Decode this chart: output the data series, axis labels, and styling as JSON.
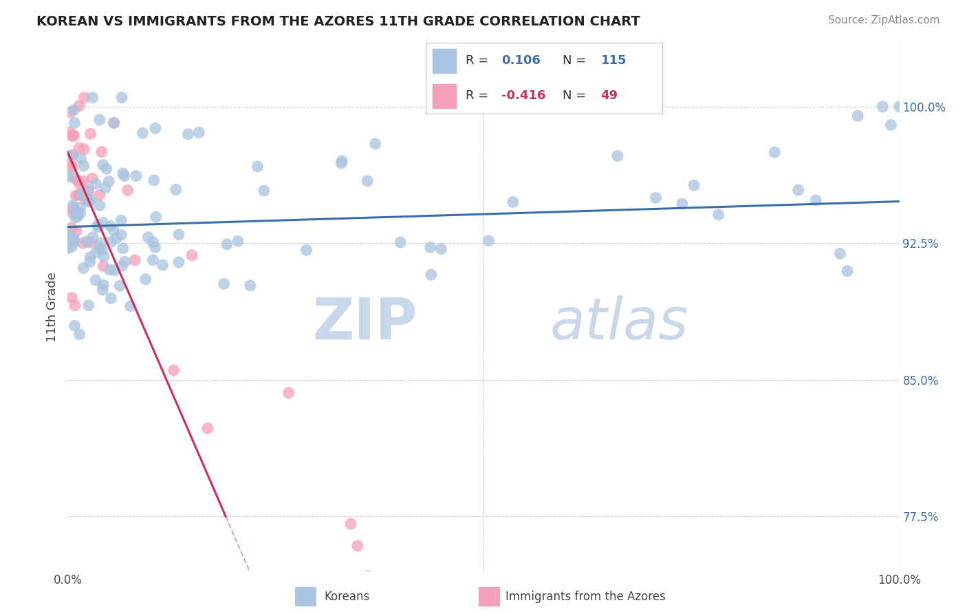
{
  "title": "KOREAN VS IMMIGRANTS FROM THE AZORES 11TH GRADE CORRELATION CHART",
  "source_text": "Source: ZipAtlas.com",
  "ylabel": "11th Grade",
  "xlim": [
    0.0,
    1.0
  ],
  "ylim": [
    0.745,
    1.035
  ],
  "y_tick_vals": [
    0.775,
    0.85,
    0.925,
    1.0
  ],
  "y_tick_labels": [
    "77.5%",
    "85.0%",
    "92.5%",
    "100.0%"
  ],
  "legend_r_korean": "0.106",
  "legend_n_korean": "115",
  "legend_r_azores": "-0.416",
  "legend_n_azores": "49",
  "blue_color": "#A8C4E0",
  "blue_line_color": "#3A6EA8",
  "pink_color": "#F4A0B8",
  "pink_line_color": "#C8305A",
  "watermark_zip": "ZIP",
  "watermark_atlas": "atlas",
  "watermark_color": "#C8D8EA",
  "background_color": "#FFFFFF",
  "grid_color": "#CCCCCC",
  "title_color": "#222222",
  "source_color": "#888888",
  "label_color": "#444444"
}
